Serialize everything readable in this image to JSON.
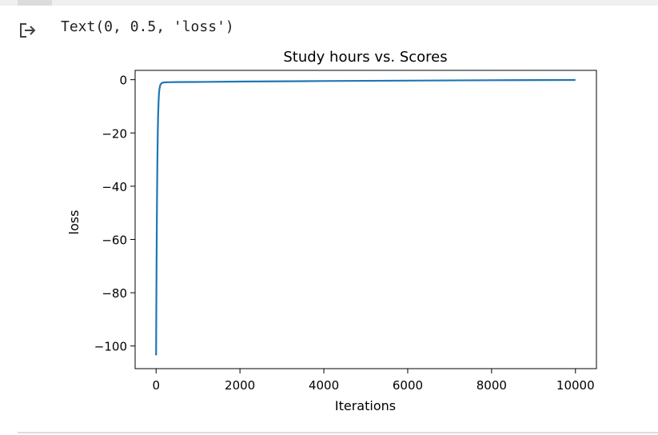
{
  "output": {
    "icon": "output-arrow-icon",
    "text": "Text(0, 0.5, 'loss')"
  },
  "chart_data": {
    "type": "line",
    "title": "Study hours vs. Scores",
    "xlabel": "Iterations",
    "ylabel": "loss",
    "xlim": [
      -500,
      10500
    ],
    "ylim": [
      -108.5,
      3.5
    ],
    "grid": false,
    "x_ticks": [
      0,
      2000,
      4000,
      6000,
      8000,
      10000
    ],
    "x_tick_labels": [
      "0",
      "2000",
      "4000",
      "6000",
      "8000",
      "10000"
    ],
    "y_ticks": [
      0,
      -20,
      -40,
      -60,
      -80,
      -100
    ],
    "y_tick_labels": [
      "0",
      "−20",
      "−40",
      "−60",
      "−80",
      "−100"
    ],
    "series": [
      {
        "color": "#1f77b4",
        "x": [
          0,
          5,
          10,
          15,
          20,
          25,
          30,
          40,
          50,
          60,
          70,
          80,
          100,
          130,
          160,
          200,
          300,
          500,
          1000,
          2000,
          4000,
          6000,
          8000,
          10000
        ],
        "y": [
          -103.5,
          -87,
          -73,
          -60,
          -49,
          -40,
          -32,
          -20,
          -12.5,
          -8,
          -5,
          -3.5,
          -2,
          -1.3,
          -1.1,
          -1.0,
          -0.95,
          -0.9,
          -0.85,
          -0.7,
          -0.5,
          -0.35,
          -0.2,
          -0.1
        ]
      }
    ]
  }
}
